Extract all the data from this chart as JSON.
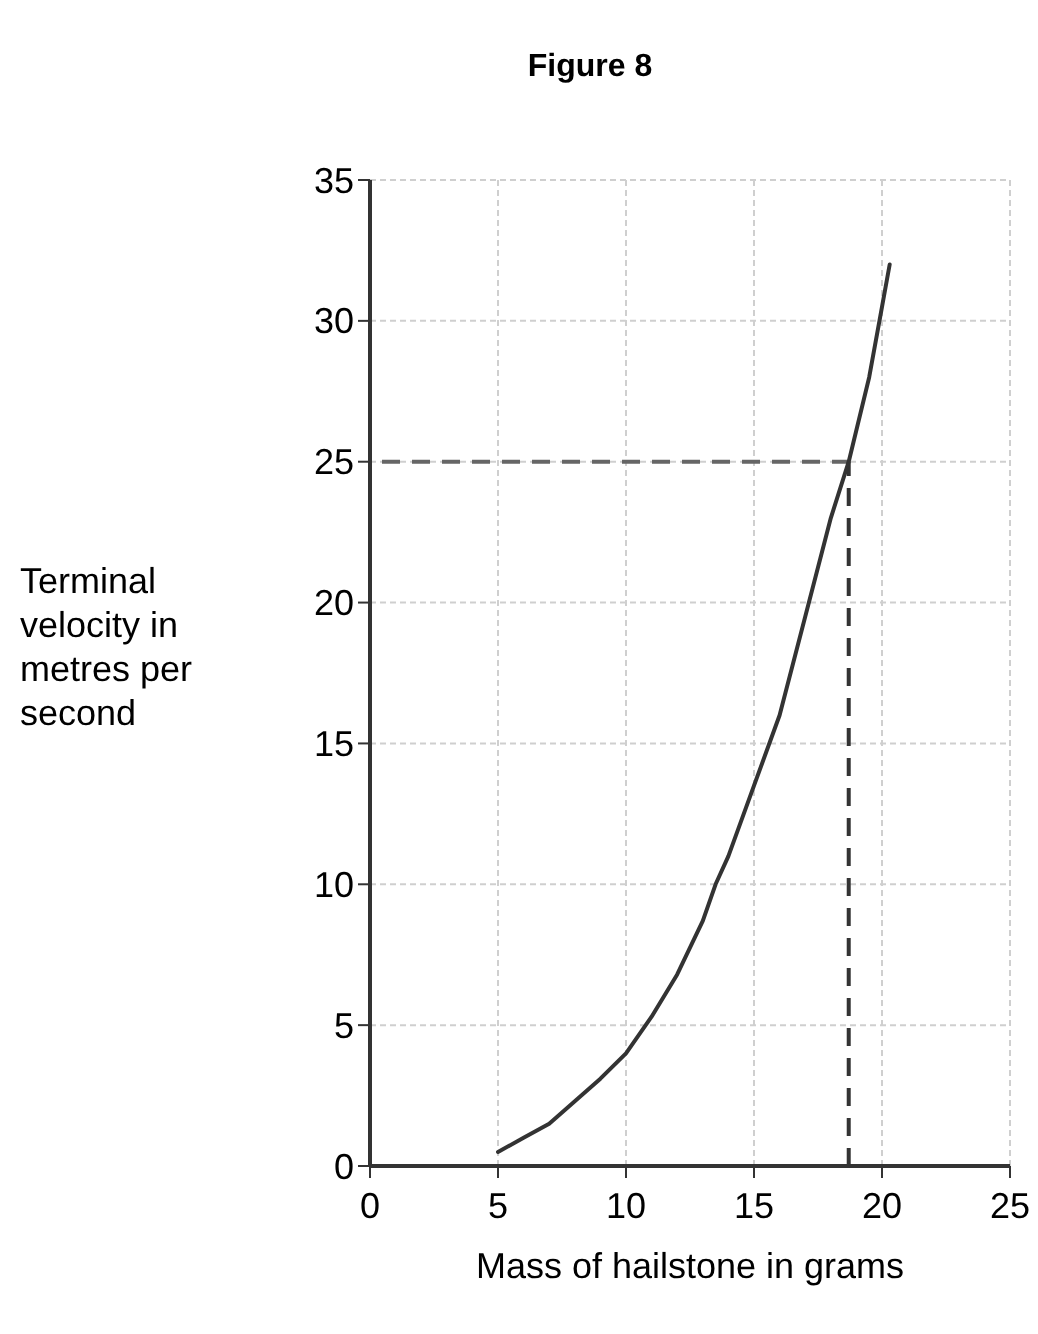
{
  "chart_data": {
    "type": "line",
    "title": "Figure 8",
    "xlabel": "Mass of hailstone in grams",
    "ylabel": "Terminal velocity in metres per second",
    "series": [
      {
        "color": "#333333",
        "x": [
          5,
          6,
          7,
          8,
          9,
          10,
          11,
          12,
          13,
          13.5,
          14,
          15,
          16,
          17,
          18,
          18.7,
          19.5,
          20,
          20.3
        ],
        "values": [
          0.5,
          1,
          1.5,
          2.3,
          3.1,
          4,
          5.3,
          6.8,
          8.7,
          10,
          11,
          13.5,
          16,
          19.5,
          23,
          25,
          28,
          30.5,
          32
        ]
      }
    ],
    "xlim": [
      0,
      25
    ],
    "xticks": [
      0,
      5,
      10,
      15,
      20,
      25
    ],
    "ylim": [
      0,
      35
    ],
    "yticks": [
      0,
      5,
      10,
      15,
      20,
      25,
      30,
      35
    ],
    "grid": true,
    "marker": "none",
    "line_style": "solid",
    "ref_lines": [
      {
        "axis": "y",
        "value": 25,
        "color": "#666666",
        "line_style": "dashed"
      },
      {
        "axis": "x",
        "value": 18.7,
        "color": "#333333",
        "line_style": "dashed"
      }
    ]
  }
}
